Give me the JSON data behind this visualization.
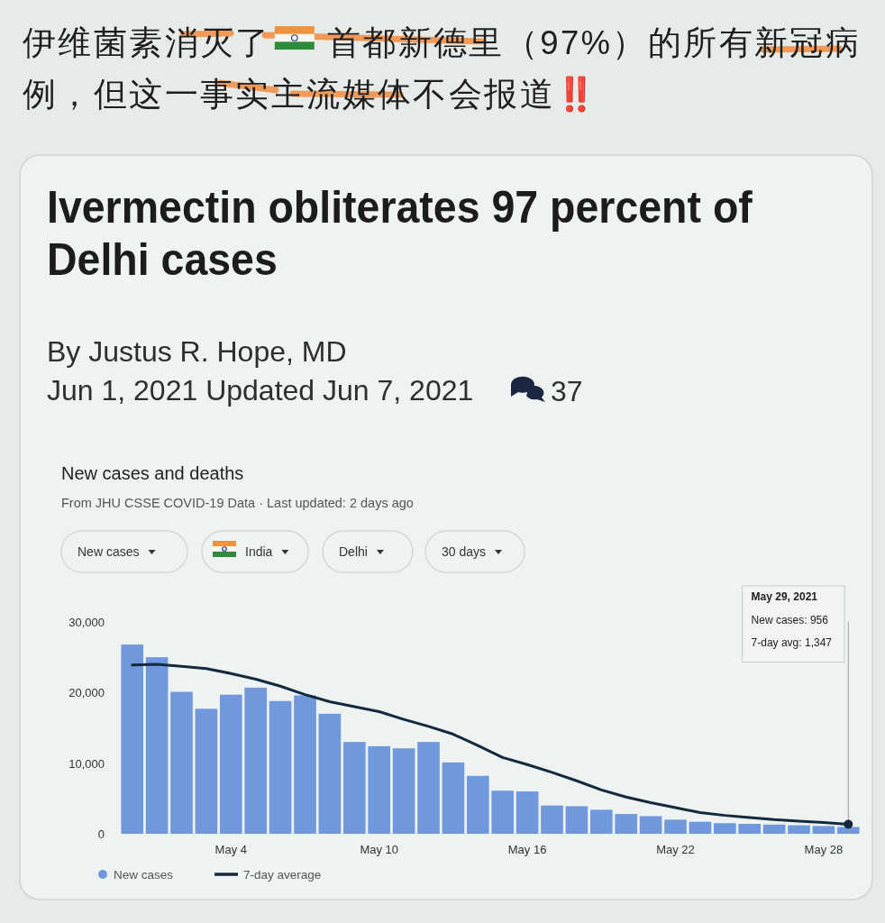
{
  "chart_data": {
    "type": "bar",
    "title": "New cases and deaths",
    "subtitle": "From JHU CSSE COVID-19 Data · Last updated: 2 days ago",
    "x": [
      "2021-04-30",
      "2021-05-01",
      "2021-05-02",
      "2021-05-03",
      "2021-05-04",
      "2021-05-05",
      "2021-05-06",
      "2021-05-07",
      "2021-05-08",
      "2021-05-09",
      "2021-05-10",
      "2021-05-11",
      "2021-05-12",
      "2021-05-13",
      "2021-05-14",
      "2021-05-15",
      "2021-05-16",
      "2021-05-17",
      "2021-05-18",
      "2021-05-19",
      "2021-05-20",
      "2021-05-21",
      "2021-05-22",
      "2021-05-23",
      "2021-05-24",
      "2021-05-25",
      "2021-05-26",
      "2021-05-27",
      "2021-05-28",
      "2021-05-29"
    ],
    "series": [
      {
        "name": "New cases",
        "color": "#6f99dc",
        "values": [
          26800,
          25000,
          20100,
          17700,
          19700,
          20700,
          18800,
          19600,
          17000,
          13000,
          12400,
          12100,
          13000,
          10100,
          8200,
          6100,
          6000,
          4000,
          3900,
          3400,
          2800,
          2500,
          2000,
          1700,
          1500,
          1400,
          1300,
          1200,
          1100,
          956
        ]
      },
      {
        "name": "7-day average",
        "type": "line",
        "color": "#13293d",
        "values": [
          23900,
          24000,
          23700,
          23400,
          22700,
          21900,
          20900,
          19700,
          18700,
          18000,
          17300,
          16200,
          15200,
          14100,
          12500,
          10800,
          9800,
          8700,
          7500,
          6200,
          5200,
          4400,
          3700,
          3000,
          2600,
          2300,
          2000,
          1800,
          1600,
          1347
        ]
      }
    ],
    "xlim": [
      "2021-04-29T12:00",
      "2021-05-29T12:00"
    ],
    "xticks": [
      {
        "value": "2021-05-04",
        "label": "May 4"
      },
      {
        "value": "2021-05-10",
        "label": "May 10"
      },
      {
        "value": "2021-05-16",
        "label": "May 16"
      },
      {
        "value": "2021-05-22",
        "label": "May 22"
      },
      {
        "value": "2021-05-28",
        "label": "May 28"
      }
    ],
    "ylim": [
      0,
      30000
    ],
    "yticks": [
      0,
      {
        "value": 10000,
        "label": "10,000"
      },
      {
        "value": 20000,
        "label": "20,000"
      },
      {
        "value": 30000,
        "label": "30,000"
      }
    ],
    "ref_lines": [
      {
        "axis": "x",
        "value": "2021-05-29",
        "color": "#9aa3a0"
      }
    ],
    "legend": "bottom left",
    "annotations": [
      "伊维菌素消灭了",
      "首都新德里（97%）的所有新冠病",
      "例，但这一事实主流媒体不会报道‼️",
      "Ivermectin obliterates 97 percent of Delhi cases",
      "By Justus R. Hope, MD",
      "Jun 1, 2021 Updated Jun 7, 2021",
      "37",
      "New cases",
      "India",
      "Delhi",
      "30 days",
      "May 29, 2021\nNew cases: 956\n7-day avg: 1,347"
    ]
  }
}
